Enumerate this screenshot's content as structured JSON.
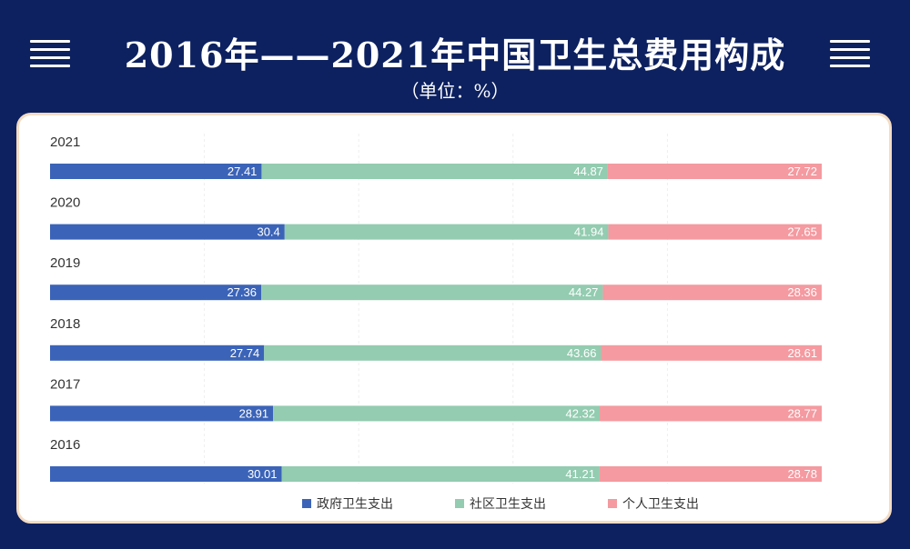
{
  "header": {
    "title": "2016年——2021年中国卫生总费用构成",
    "unit": "（单位：%）"
  },
  "chart_data": {
    "type": "bar",
    "stacked": true,
    "orientation": "horizontal",
    "categories": [
      "2021",
      "2020",
      "2019",
      "2018",
      "2017",
      "2016"
    ],
    "series": [
      {
        "name": "政府卫生支出",
        "color": "#3b64b8",
        "values": [
          27.41,
          30.4,
          27.36,
          27.74,
          28.91,
          30.01
        ]
      },
      {
        "name": "社区卫生支出",
        "color": "#93ccb0",
        "values": [
          44.87,
          41.94,
          44.27,
          43.66,
          42.32,
          41.21
        ]
      },
      {
        "name": "个人卫生支出",
        "color": "#f49aa0",
        "values": [
          27.72,
          27.65,
          28.36,
          28.61,
          28.77,
          28.78
        ]
      }
    ],
    "xlim": [
      0,
      100
    ],
    "legend_position": "bottom",
    "data_labels": true
  },
  "icons": {
    "left": "menu-icon",
    "right": "menu-icon"
  }
}
